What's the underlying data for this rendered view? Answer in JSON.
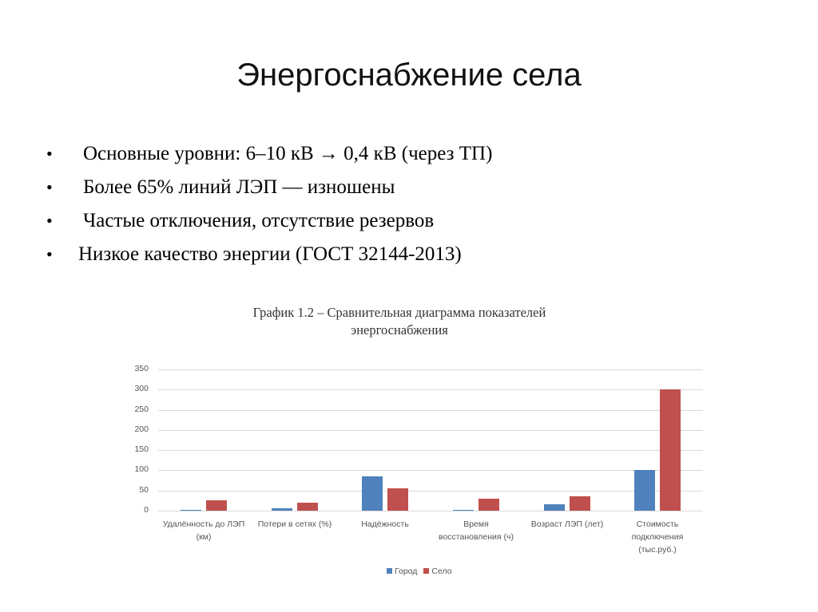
{
  "slide": {
    "title": "Энергоснабжение села",
    "bullets": [
      {
        "marker": "•",
        "text": "Основные уровни: 6–10 кВ → 0,4 кВ (через ТП)"
      },
      {
        "marker": "•",
        "text": "Более 65% линий ЛЭП — изношены"
      },
      {
        "marker": "•",
        "text": "Частые отключения, отсутствие резервов"
      },
      {
        "marker": "•",
        "text": "Низкое качество энергии (ГОСТ 32144-2013)"
      }
    ]
  },
  "chart_data": {
    "type": "bar",
    "title": "График 1.2 – Сравнительная диаграмма показателей энергоснабжения",
    "title_lines": [
      "График 1.2 – Сравнительная диаграмма показателей",
      "энергоснабжения"
    ],
    "categories": [
      "Удалённость до ЛЭП (км)",
      "Потери в сетях (%)",
      "Надёжность",
      "Время восстановления (ч)",
      "Возраст ЛЭП (лет)",
      "Стоимость подключения (тыс.руб.)"
    ],
    "category_lines": [
      [
        "Удалённость до ЛЭП",
        "(км)"
      ],
      [
        "Потери в сетях (%)"
      ],
      [
        "Надёжность"
      ],
      [
        "Время",
        "восстановления (ч)"
      ],
      [
        "Возраст ЛЭП (лет)"
      ],
      [
        "Стоимость",
        "подключения",
        "(тыс.руб.)"
      ]
    ],
    "series": [
      {
        "name": "Город",
        "color": "#4f81bd",
        "values": [
          1,
          5,
          85,
          1,
          15,
          100
        ]
      },
      {
        "name": "Село",
        "color": "#c0504d",
        "values": [
          25,
          20,
          55,
          30,
          35,
          300
        ]
      }
    ],
    "yticks": [
      "0",
      "50",
      "100",
      "150",
      "200",
      "250",
      "300",
      "350"
    ],
    "ylim": [
      0,
      350
    ],
    "xlabel": "",
    "ylabel": "",
    "grid": true,
    "legend_position": "bottom"
  }
}
